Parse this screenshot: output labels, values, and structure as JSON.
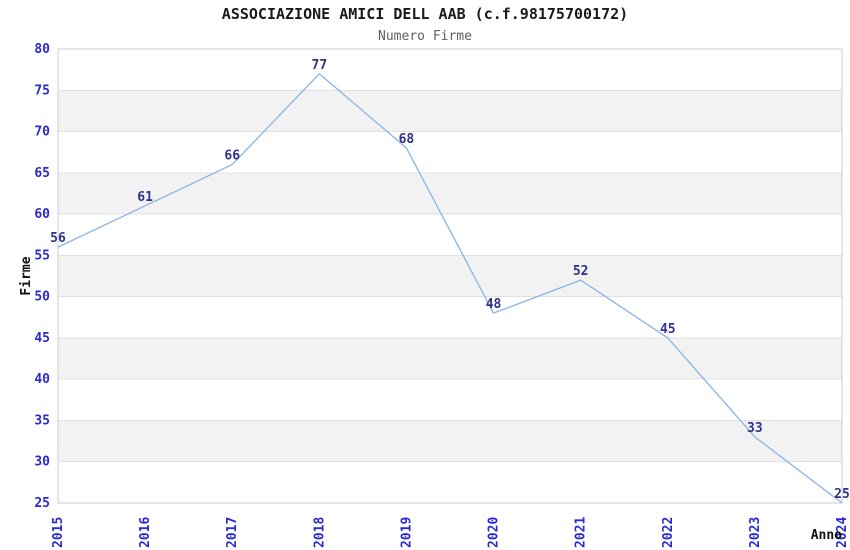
{
  "chart_data": {
    "type": "line",
    "title": "ASSOCIAZIONE AMICI DELL AAB (c.f.98175700172)",
    "subtitle": "Numero Firme",
    "xlabel": "Anno",
    "ylabel": "Firme",
    "categories": [
      "2015",
      "2016",
      "2017",
      "2018",
      "2019",
      "2020",
      "2021",
      "2022",
      "2023",
      "2024"
    ],
    "values": [
      56,
      61,
      66,
      77,
      68,
      48,
      52,
      45,
      33,
      25
    ],
    "ylim": [
      25,
      80
    ],
    "ytick_step": 5,
    "grid": true,
    "legend": "none",
    "plot_bands": "alternating horizontal rows",
    "colors": {
      "line": "#88b4e6",
      "tick_label": "#2a2ad2",
      "data_label": "#31318c",
      "band": "#f2f2f2",
      "grid_line": "#e0e0e0",
      "plot_border": "#cccccc",
      "title_text": "#1a1a1a",
      "subtitle_text": "#606060",
      "background": "#ffffff"
    }
  }
}
